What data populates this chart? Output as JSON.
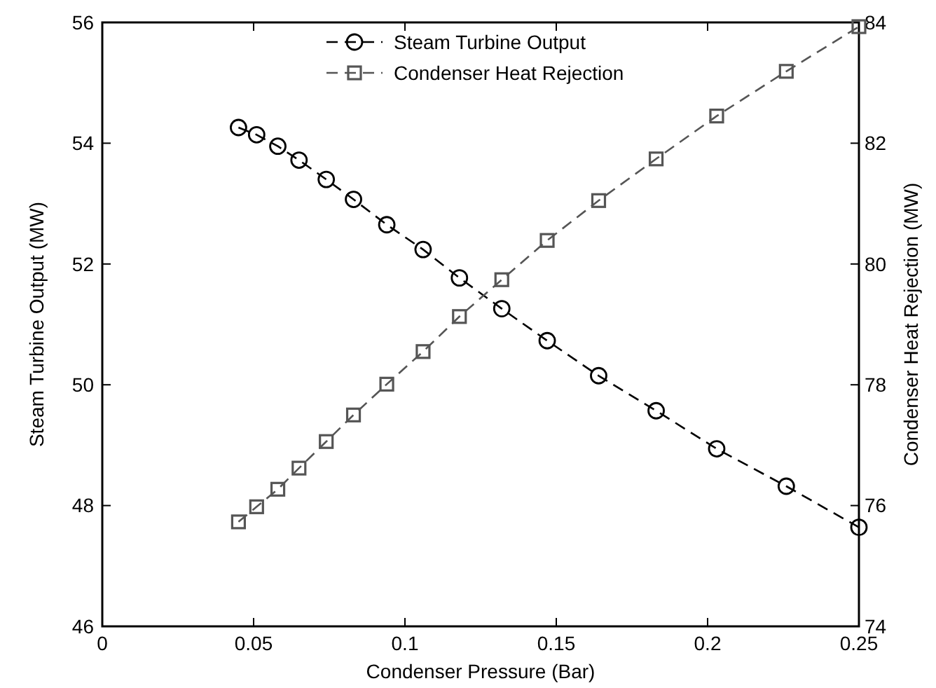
{
  "chart_data": {
    "type": "line",
    "xlabel": "Condenser Pressure (Bar)",
    "ylabel": "Steam Turbine Output (MW)",
    "y2label": "Condenser Heat Rejection (MW)",
    "x": [
      0.045,
      0.051,
      0.058,
      0.065,
      0.074,
      0.083,
      0.094,
      0.106,
      0.118,
      0.132,
      0.147,
      0.164,
      0.183,
      0.203,
      0.226,
      0.25
    ],
    "series": [
      {
        "name": "Steam Turbine Output",
        "color": "#000000",
        "marker": "circle",
        "line_style": "dashed",
        "values": [
          54.26,
          54.14,
          53.95,
          53.72,
          53.4,
          53.07,
          52.65,
          52.24,
          51.77,
          51.26,
          50.73,
          50.15,
          49.57,
          48.94,
          48.32,
          47.64
        ]
      },
      {
        "name": "Condenser Heat Rejection",
        "color": "#555555",
        "marker": "square",
        "line_style": "dashed",
        "axis": "y2",
        "values": [
          75.73,
          75.98,
          76.27,
          76.62,
          77.06,
          77.5,
          78.01,
          78.55,
          79.13,
          79.74,
          80.39,
          81.05,
          81.74,
          82.45,
          83.19,
          83.93
        ]
      }
    ],
    "xlim": [
      0,
      0.25
    ],
    "xticks": [
      0,
      0.05,
      0.1,
      0.15,
      0.2,
      0.25
    ],
    "ylim": [
      46,
      56
    ],
    "yticks": [
      46,
      48,
      50,
      52,
      54,
      56
    ],
    "y2lim": [
      74,
      84
    ],
    "y2ticks": [
      74,
      76,
      78,
      80,
      82,
      84
    ],
    "grid": false,
    "legend": "top"
  }
}
